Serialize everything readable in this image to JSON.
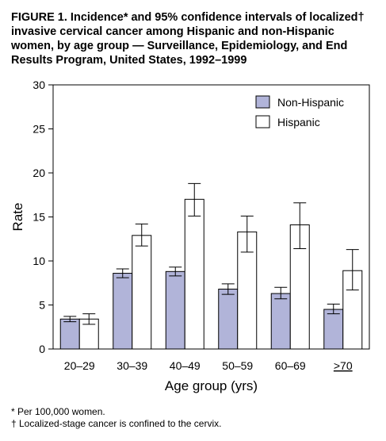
{
  "figure": {
    "title": "FIGURE 1. Incidence* and 95% confidence intervals of localized† invasive cervical cancer among Hispanic and non-Hispanic women, by age group — Surveillance, Epidemiology, and End Results Program, United States, 1992–1999"
  },
  "footnotes": [
    "* Per 100,000 women.",
    "† Localized-stage cancer is confined to the cervix."
  ],
  "chart_data": {
    "type": "bar",
    "title": "FIGURE 1. Incidence* and 95% confidence intervals of localized† invasive cervical cancer among Hispanic and non-Hispanic women, by age group — Surveillance, Epidemiology, and End Results Program, United States, 1992–1999",
    "xlabel": "Age group (yrs)",
    "ylabel": "Rate",
    "ylim": [
      0,
      30
    ],
    "yticks": [
      0,
      5,
      10,
      15,
      20,
      25,
      30
    ],
    "categories": [
      "20–29",
      "30–39",
      "40–49",
      "50–59",
      "60–69",
      ">70"
    ],
    "grid": false,
    "legend_position": "top-right",
    "series": [
      {
        "name": "Non-Hispanic",
        "color": "#b1b4d9",
        "values": [
          3.4,
          8.6,
          8.8,
          6.8,
          6.3,
          4.5
        ],
        "ci_low": [
          3.1,
          8.1,
          8.3,
          6.2,
          5.7,
          4.0
        ],
        "ci_high": [
          3.7,
          9.1,
          9.3,
          7.4,
          7.0,
          5.1
        ]
      },
      {
        "name": "Hispanic",
        "color": "#ffffff",
        "values": [
          3.4,
          12.9,
          17.0,
          13.3,
          14.1,
          8.9
        ],
        "ci_low": [
          2.8,
          11.7,
          15.1,
          11.0,
          11.4,
          6.7
        ],
        "ci_high": [
          4.0,
          14.2,
          18.8,
          15.1,
          16.6,
          11.3
        ]
      }
    ]
  }
}
